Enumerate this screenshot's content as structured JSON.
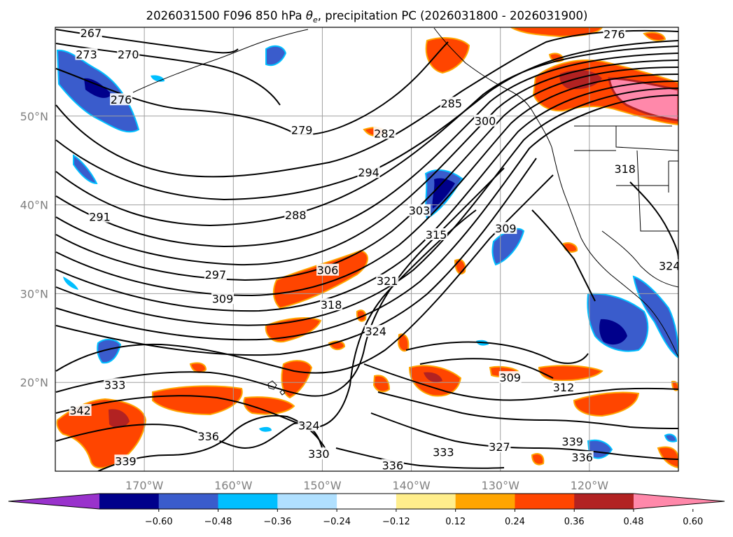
{
  "figure": {
    "title": "2026031500 F096 850 hPa θe, precipitation PC (2026031800 - 2026031900)",
    "title_parts": {
      "pre": "2026031500 F096 850 hPa ",
      "theta": "θ",
      "sub": "e",
      "post": ", precipitation PC (2026031800 - 2026031900)"
    }
  },
  "map": {
    "lon_range": [
      -180,
      -110
    ],
    "lat_range": [
      10,
      60
    ],
    "grid": true,
    "lat_ticks": [
      {
        "value": 20,
        "label": "20°N"
      },
      {
        "value": 30,
        "label": "30°N"
      },
      {
        "value": 40,
        "label": "40°N"
      },
      {
        "value": 50,
        "label": "50°N"
      }
    ],
    "lon_ticks": [
      {
        "value": -170,
        "label": "170°W"
      },
      {
        "value": -160,
        "label": "160°W"
      },
      {
        "value": -150,
        "label": "150°W"
      },
      {
        "value": -140,
        "label": "140°W"
      },
      {
        "value": -130,
        "label": "130°W"
      },
      {
        "value": -120,
        "label": "120°W"
      }
    ]
  },
  "contour_labels": [
    {
      "text": "267",
      "lon": -176.0,
      "lat": 59.2
    },
    {
      "text": "273",
      "lon": -176.5,
      "lat": 56.8
    },
    {
      "text": "270",
      "lon": -171.8,
      "lat": 56.8
    },
    {
      "text": "276",
      "lon": -172.6,
      "lat": 51.7
    },
    {
      "text": "279",
      "lon": -152.3,
      "lat": 48.3
    },
    {
      "text": "276",
      "lon": -117.2,
      "lat": 59.1
    },
    {
      "text": "285",
      "lon": -135.5,
      "lat": 51.3
    },
    {
      "text": "282",
      "lon": -143.0,
      "lat": 47.9
    },
    {
      "text": "300",
      "lon": -131.7,
      "lat": 49.3
    },
    {
      "text": "294",
      "lon": -144.8,
      "lat": 43.5
    },
    {
      "text": "288",
      "lon": -153.0,
      "lat": 38.7
    },
    {
      "text": "303",
      "lon": -139.1,
      "lat": 39.2
    },
    {
      "text": "291",
      "lon": -175.0,
      "lat": 38.5
    },
    {
      "text": "315",
      "lon": -137.2,
      "lat": 36.5
    },
    {
      "text": "309",
      "lon": -129.4,
      "lat": 37.2
    },
    {
      "text": "306",
      "lon": -149.4,
      "lat": 32.5
    },
    {
      "text": "297",
      "lon": -162.0,
      "lat": 32.0
    },
    {
      "text": "321",
      "lon": -142.7,
      "lat": 31.3
    },
    {
      "text": "309",
      "lon": -161.2,
      "lat": 29.3
    },
    {
      "text": "318",
      "lon": -149.0,
      "lat": 28.6
    },
    {
      "text": "324",
      "lon": -144.0,
      "lat": 25.6
    },
    {
      "text": "333",
      "lon": -173.3,
      "lat": 19.6
    },
    {
      "text": "342",
      "lon": -177.2,
      "lat": 16.7
    },
    {
      "text": "336",
      "lon": -162.8,
      "lat": 13.8
    },
    {
      "text": "324",
      "lon": -151.5,
      "lat": 15.0
    },
    {
      "text": "330",
      "lon": -150.4,
      "lat": 11.8
    },
    {
      "text": "339",
      "lon": -172.1,
      "lat": 11.0
    },
    {
      "text": "336",
      "lon": -142.1,
      "lat": 10.5
    },
    {
      "text": "333",
      "lon": -136.4,
      "lat": 12.0
    },
    {
      "text": "327",
      "lon": -130.1,
      "lat": 12.6
    },
    {
      "text": "309",
      "lon": -128.9,
      "lat": 20.4
    },
    {
      "text": "312",
      "lon": -122.9,
      "lat": 19.3
    },
    {
      "text": "339",
      "lon": -121.9,
      "lat": 13.2
    },
    {
      "text": "336",
      "lon": -120.8,
      "lat": 11.4
    },
    {
      "text": "318",
      "lon": -116.0,
      "lat": 43.9
    },
    {
      "text": "324",
      "lon": -111.0,
      "lat": 33.0
    }
  ],
  "colorbar": {
    "tick_labels": [
      "−0.60",
      "−0.48",
      "−0.36",
      "−0.24",
      "−0.12",
      "0.12",
      "0.24",
      "0.36",
      "0.48",
      "0.60"
    ],
    "colors": [
      "#9932cc",
      "#00008b",
      "#3a5ccc",
      "#00bfff",
      "#b0e0ff",
      "#ffffff",
      "#ffee8c",
      "#ffa500",
      "#ff4500",
      "#b22222",
      "#ff88aa"
    ]
  },
  "colors": {
    "neg_strong": "#00008b",
    "neg_mid": "#3a5ccc",
    "neg_light": "#00bfff",
    "pos_light": "#ffa500",
    "pos_mid": "#ff4500",
    "pos_strong": "#b22222",
    "pos_max": "#ff88aa",
    "contour": "#000000"
  }
}
